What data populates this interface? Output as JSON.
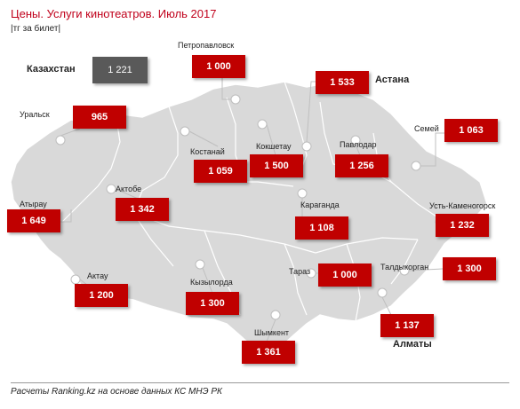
{
  "title": "Цены. Услуги кинотеатров. Июль 2017",
  "subtitle": "|тг за билет|",
  "footer": "Расчеты Ranking.kz на основе данных КС МНЭ РК",
  "country": {
    "name": "Казахстан",
    "value": "1 221"
  },
  "cities": [
    {
      "id": "petropavlovsk",
      "name": "Петропавловск",
      "value": "1 000"
    },
    {
      "id": "astana",
      "name": "Астана",
      "value": "1 533"
    },
    {
      "id": "uralsk",
      "name": "Уральск",
      "value": "965"
    },
    {
      "id": "semey",
      "name": "Семей",
      "value": "1 063"
    },
    {
      "id": "kostanay",
      "name": "Костанай",
      "value": "1 059"
    },
    {
      "id": "kokshetau",
      "name": "Кокшетау",
      "value": "1 500"
    },
    {
      "id": "pavlodar",
      "name": "Павлодар",
      "value": "1 256"
    },
    {
      "id": "aktobe",
      "name": "Актобе",
      "value": "1 342"
    },
    {
      "id": "atyrau",
      "name": "Атырау",
      "value": "1 649"
    },
    {
      "id": "karaganda",
      "name": "Караганда",
      "value": "1 108"
    },
    {
      "id": "ust-kamenogorsk",
      "name": "Усть-Каменогорск",
      "value": "1 232"
    },
    {
      "id": "aktau",
      "name": "Актау",
      "value": "1 200"
    },
    {
      "id": "kyzylorda",
      "name": "Кызылорда",
      "value": "1 300"
    },
    {
      "id": "taraz",
      "name": "Тараз",
      "value": "1 000"
    },
    {
      "id": "taldykorgan",
      "name": "Талдыкорган",
      "value": "1 300"
    },
    {
      "id": "shymkent",
      "name": "Шымкент",
      "value": "1 361"
    },
    {
      "id": "almaty",
      "name": "Алматы",
      "value": "1 137"
    }
  ],
  "colors": {
    "value_box": "#c00000",
    "country_box": "#595959",
    "title": "#c0001b",
    "map_fill": "#d9d9d9"
  }
}
